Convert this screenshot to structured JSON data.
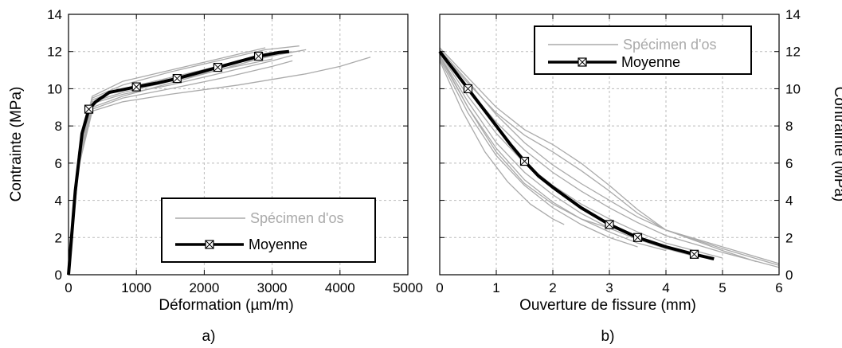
{
  "chart_data": [
    {
      "type": "line",
      "panel_label": "a)",
      "xlabel": "Déformation (µm/m)",
      "ylabel": "Contrainte (MPa)",
      "xlim": [
        0,
        5000
      ],
      "ylim": [
        0,
        14
      ],
      "xticks": [
        0,
        1000,
        2000,
        3000,
        4000,
        5000
      ],
      "yticks": [
        0,
        2,
        4,
        6,
        8,
        10,
        12,
        14
      ],
      "grid": true,
      "legend_position": "bottom-right",
      "legend": [
        "Spécimen d'os",
        "Moyenne"
      ],
      "series": [
        {
          "name": "Moyenne",
          "color": "#000000",
          "marker": "boxed-x",
          "x": [
            0,
            100,
            200,
            300,
            400,
            600,
            800,
            1000,
            1300,
            1600,
            1900,
            2200,
            2500,
            2800,
            3100,
            3250
          ],
          "y": [
            0,
            4.5,
            7.6,
            8.9,
            9.3,
            9.8,
            9.95,
            10.1,
            10.3,
            10.55,
            10.85,
            11.15,
            11.45,
            11.75,
            11.95,
            12.0
          ]
        },
        {
          "name": "Spécimen d'os",
          "color": "#aaaaaa",
          "x": [
            0,
            150,
            350,
            800,
            1500,
            2200,
            2900,
            3400
          ],
          "y": [
            0,
            6.5,
            9.5,
            10.2,
            10.9,
            11.5,
            12.1,
            12.3
          ]
        },
        {
          "name": "Spécimen d'os",
          "color": "#aaaaaa",
          "x": [
            0,
            150,
            350,
            800,
            1500,
            2200,
            2900,
            3500
          ],
          "y": [
            0,
            6.4,
            9.4,
            10.0,
            10.6,
            11.2,
            11.7,
            12.1
          ]
        },
        {
          "name": "Spécimen d'os",
          "color": "#aaaaaa",
          "x": [
            0,
            150,
            350,
            800,
            1500,
            2200,
            3000
          ],
          "y": [
            0,
            6.3,
            9.3,
            9.8,
            10.4,
            11.0,
            11.6
          ]
        },
        {
          "name": "Spécimen d'os",
          "color": "#aaaaaa",
          "x": [
            0,
            150,
            350,
            800,
            1500,
            2200,
            3000,
            3300
          ],
          "y": [
            0,
            6.2,
            9.2,
            9.7,
            10.2,
            10.8,
            11.5,
            11.8
          ]
        },
        {
          "name": "Spécimen d'os",
          "color": "#aaaaaa",
          "x": [
            0,
            150,
            350,
            800,
            1500,
            2200,
            2800,
            3300
          ],
          "y": [
            0,
            6.0,
            9.0,
            9.6,
            10.3,
            11.0,
            11.6,
            12.0
          ]
        },
        {
          "name": "Spécimen d'os",
          "color": "#aaaaaa",
          "x": [
            0,
            150,
            350,
            800,
            1500,
            2200,
            2900
          ],
          "y": [
            0,
            6.6,
            9.6,
            10.4,
            11.0,
            11.6,
            12.2
          ]
        },
        {
          "name": "Spécimen d'os",
          "color": "#aaaaaa",
          "x": [
            0,
            150,
            350,
            800,
            1500,
            2300,
            3000,
            3300
          ],
          "y": [
            0,
            5.9,
            8.9,
            9.5,
            10.0,
            10.6,
            11.2,
            11.5
          ]
        },
        {
          "name": "Spécimen d'os",
          "color": "#aaaaaa",
          "x": [
            0,
            150,
            350,
            800,
            1500,
            2500,
            3500,
            4000,
            4450
          ],
          "y": [
            0,
            5.8,
            8.8,
            9.3,
            9.7,
            10.2,
            10.8,
            11.2,
            11.7
          ]
        }
      ]
    },
    {
      "type": "line",
      "panel_label": "b)",
      "xlabel": "Ouverture de fissure (mm)",
      "ylabel": "Contrainte (MPa)",
      "xlim": [
        0,
        6
      ],
      "ylim": [
        0,
        14
      ],
      "xticks": [
        0,
        1,
        2,
        3,
        4,
        5,
        6
      ],
      "yticks": [
        0,
        2,
        4,
        6,
        8,
        10,
        12,
        14
      ],
      "grid": true,
      "legend_position": "top-right",
      "legend": [
        "Spécimen d'os",
        "Moyenne"
      ],
      "series": [
        {
          "name": "Moyenne",
          "color": "#000000",
          "marker": "boxed-x",
          "x": [
            0,
            0.25,
            0.5,
            0.75,
            1.0,
            1.25,
            1.5,
            1.75,
            2.0,
            2.5,
            3.0,
            3.5,
            4.0,
            4.5,
            4.85
          ],
          "y": [
            12.0,
            11.0,
            10.0,
            9.0,
            8.0,
            7.0,
            6.1,
            5.3,
            4.7,
            3.6,
            2.7,
            2.0,
            1.5,
            1.1,
            0.85
          ]
        },
        {
          "name": "Spécimen d'os",
          "color": "#aaaaaa",
          "x": [
            0,
            0.5,
            1.0,
            1.5,
            2.0,
            2.5,
            3.0,
            3.5,
            4.0,
            5.0,
            6.0
          ],
          "y": [
            12.2,
            10.6,
            9.0,
            7.8,
            7.0,
            6.0,
            4.8,
            3.5,
            2.4,
            1.4,
            0.5
          ]
        },
        {
          "name": "Spécimen d'os",
          "color": "#aaaaaa",
          "x": [
            0,
            0.5,
            1.0,
            1.5,
            2.0,
            2.5,
            3.0,
            3.5,
            4.0,
            5.0,
            6.0
          ],
          "y": [
            12.0,
            10.3,
            8.7,
            7.5,
            6.6,
            5.6,
            4.5,
            3.3,
            2.4,
            1.5,
            0.6
          ]
        },
        {
          "name": "Spécimen d'os",
          "color": "#aaaaaa",
          "x": [
            0,
            0.5,
            1.0,
            1.5,
            2.0,
            2.5,
            3.0,
            3.5,
            4.0,
            5.0,
            5.6
          ],
          "y": [
            12.1,
            10.4,
            8.6,
            7.1,
            5.9,
            4.9,
            4.0,
            3.1,
            2.4,
            1.3,
            0.7
          ]
        },
        {
          "name": "Spécimen d'os",
          "color": "#aaaaaa",
          "x": [
            0,
            0.5,
            1.0,
            1.5,
            2.0,
            2.5,
            3.0,
            3.5,
            4.0,
            5.0,
            6.0
          ],
          "y": [
            12.0,
            10.0,
            8.2,
            6.7,
            5.5,
            4.5,
            3.6,
            2.8,
            2.1,
            1.2,
            0.4
          ]
        },
        {
          "name": "Spécimen d'os",
          "color": "#aaaaaa",
          "x": [
            0,
            0.5,
            1.0,
            1.5,
            2.0,
            2.5,
            3.0,
            3.5,
            4.0,
            5.0
          ],
          "y": [
            11.9,
            9.6,
            7.6,
            6.0,
            4.8,
            3.8,
            3.0,
            2.3,
            1.7,
            0.9
          ]
        },
        {
          "name": "Spécimen d'os",
          "color": "#aaaaaa",
          "x": [
            0,
            0.5,
            1.0,
            1.5,
            2.0,
            2.5,
            3.0,
            3.5,
            4.0,
            4.5
          ],
          "y": [
            11.8,
            9.3,
            7.1,
            5.5,
            4.3,
            3.3,
            2.5,
            1.9,
            1.4,
            1.0
          ]
        },
        {
          "name": "Spécimen d'os",
          "color": "#aaaaaa",
          "x": [
            0,
            0.5,
            1.0,
            1.5,
            2.0,
            2.5,
            3.0,
            3.5,
            4.0
          ],
          "y": [
            11.7,
            9.0,
            6.8,
            5.1,
            3.9,
            3.0,
            2.3,
            1.7,
            1.3
          ]
        },
        {
          "name": "Spécimen d'os",
          "color": "#aaaaaa",
          "x": [
            0,
            0.5,
            1.0,
            1.5,
            2.0,
            2.5,
            3.0,
            3.5
          ],
          "y": [
            11.6,
            8.7,
            6.4,
            4.8,
            3.6,
            2.7,
            2.0,
            1.5
          ]
        },
        {
          "name": "Spécimen d'os",
          "color": "#aaaaaa",
          "x": [
            0,
            0.4,
            0.8,
            1.2,
            1.6,
            2.0,
            2.2
          ],
          "y": [
            11.5,
            8.8,
            6.6,
            5.0,
            3.8,
            3.0,
            2.7
          ]
        },
        {
          "name": "Spécimen d'os",
          "color": "#aaaaaa",
          "x": [
            0,
            0.5,
            1.0,
            1.5,
            2.0,
            2.5,
            3.0
          ],
          "y": [
            11.8,
            9.0,
            6.6,
            4.9,
            3.8,
            3.0,
            2.5
          ]
        }
      ]
    }
  ]
}
